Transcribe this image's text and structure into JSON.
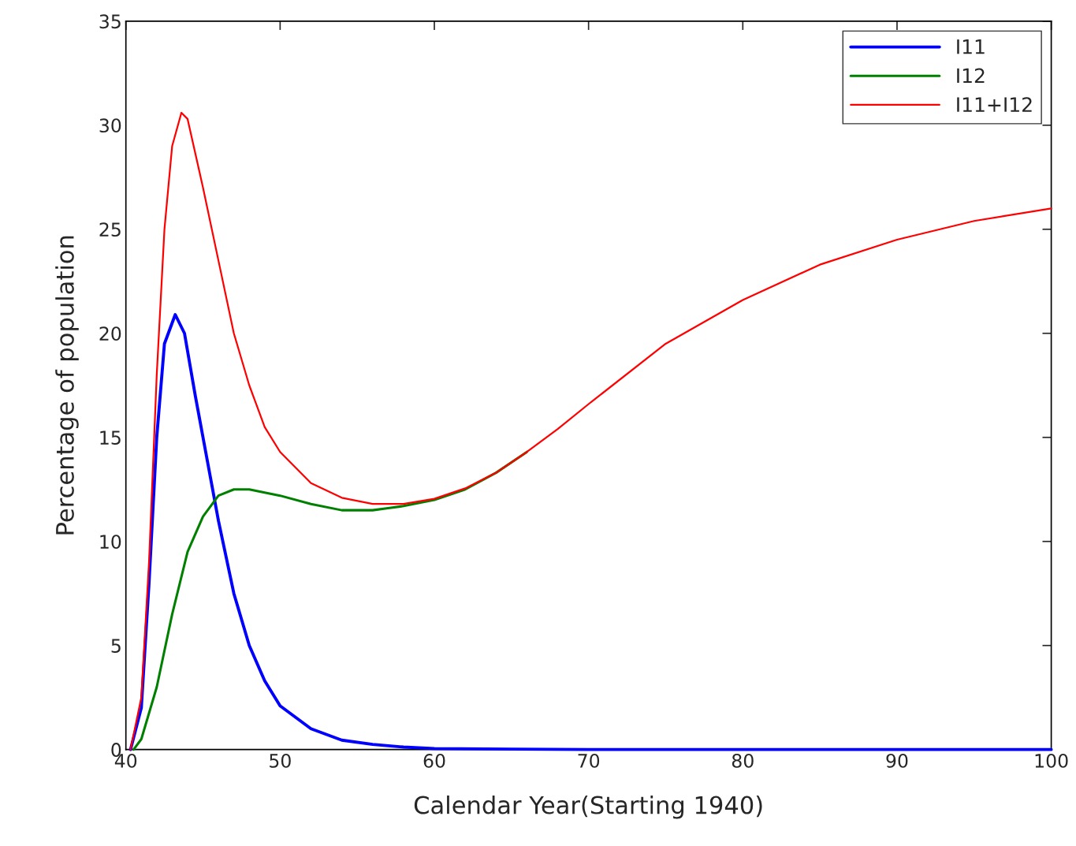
{
  "chart_data": {
    "type": "line",
    "xlabel": "Calendar Year(Starting 1940)",
    "ylabel": "Percentage of population",
    "xlim": [
      40,
      100
    ],
    "xticks": [
      40,
      50,
      60,
      70,
      80,
      90,
      100
    ],
    "ylim": [
      0,
      35
    ],
    "yticks": [
      0,
      5,
      10,
      15,
      20,
      25,
      30,
      35
    ],
    "grid": false,
    "legend": "top right",
    "marker": "none",
    "line_style": "solid",
    "series": [
      {
        "name": "I11",
        "color": "#0000ff",
        "x": [
          40.3,
          41,
          41.5,
          42,
          42.5,
          43.2,
          43.8,
          44.5,
          45,
          46,
          47,
          48,
          49,
          50,
          52,
          54,
          56,
          58,
          60,
          65,
          70,
          80,
          90,
          100
        ],
        "values": [
          0,
          2,
          8,
          15,
          19.5,
          20.9,
          20,
          17,
          15,
          11,
          7.5,
          5,
          3.3,
          2.1,
          1.0,
          0.45,
          0.25,
          0.12,
          0.05,
          0.02,
          0,
          0,
          0,
          0
        ]
      },
      {
        "name": "I12",
        "color": "#008000",
        "x": [
          40.5,
          41,
          42,
          43,
          44,
          45,
          46,
          47,
          48,
          50,
          52,
          54,
          56,
          57,
          58,
          60,
          62,
          64,
          66
        ],
        "values": [
          0,
          0.5,
          3,
          6.5,
          9.5,
          11.2,
          12.2,
          12.5,
          12.5,
          12.2,
          11.8,
          11.5,
          11.5,
          11.6,
          11.7,
          12.0,
          12.5,
          13.3,
          14.3
        ]
      },
      {
        "name": "I11+I12",
        "color": "#ff0000",
        "x": [
          40.3,
          41,
          41.5,
          42,
          42.5,
          43,
          43.6,
          44,
          45,
          46,
          47,
          48,
          49,
          50,
          52,
          54,
          56,
          58,
          60,
          62,
          64,
          66,
          68,
          70,
          75,
          80,
          85,
          90,
          95,
          100
        ],
        "values": [
          0,
          2.5,
          9,
          18,
          25,
          29,
          30.6,
          30.3,
          27,
          23.5,
          20,
          17.5,
          15.5,
          14.3,
          12.8,
          12.1,
          11.8,
          11.8,
          12.05,
          12.55,
          13.3,
          14.3,
          15.4,
          16.6,
          19.5,
          21.6,
          23.3,
          24.5,
          25.4,
          26.0
        ]
      }
    ]
  }
}
